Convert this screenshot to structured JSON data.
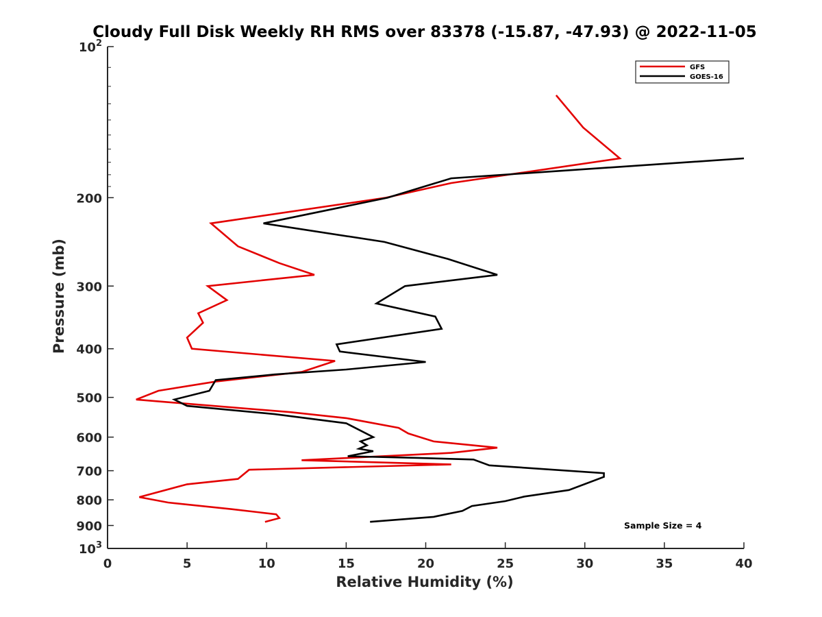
{
  "chart_data": {
    "type": "line",
    "title": "Cloudy Full Disk Weekly RH RMS over 83378 (-15.87, -47.93) @ 2022-11-05",
    "xlabel": "Relative Humidity (%)",
    "ylabel": "Pressure (mb)",
    "xlim": [
      0,
      40
    ],
    "ylim": [
      100,
      1000
    ],
    "y_scale": "log",
    "y_reversed": true,
    "grid": false,
    "legend_position": "top-right",
    "x_ticks": [
      {
        "value": 0,
        "label": "0"
      },
      {
        "value": 5,
        "label": "5"
      },
      {
        "value": 10,
        "label": "10"
      },
      {
        "value": 15,
        "label": "15"
      },
      {
        "value": 20,
        "label": "20"
      },
      {
        "value": 25,
        "label": "25"
      },
      {
        "value": 30,
        "label": "30"
      },
      {
        "value": 35,
        "label": "35"
      },
      {
        "value": 40,
        "label": "40"
      }
    ],
    "y_ticks": [
      {
        "value": 100,
        "label": "10",
        "exp": "2"
      },
      {
        "value": 200,
        "label": "200",
        "exp": ""
      },
      {
        "value": 300,
        "label": "300",
        "exp": ""
      },
      {
        "value": 400,
        "label": "400",
        "exp": ""
      },
      {
        "value": 500,
        "label": "500",
        "exp": ""
      },
      {
        "value": 600,
        "label": "600",
        "exp": ""
      },
      {
        "value": 700,
        "label": "700",
        "exp": ""
      },
      {
        "value": 800,
        "label": "800",
        "exp": ""
      },
      {
        "value": 900,
        "label": "900",
        "exp": ""
      },
      {
        "value": 1000,
        "label": "10",
        "exp": "3"
      }
    ],
    "series": [
      {
        "name": "GFS",
        "color": "#e30000",
        "points": [
          [
            28.2,
            125
          ],
          [
            29.9,
            145
          ],
          [
            32.2,
            167
          ],
          [
            21.6,
            187
          ],
          [
            17.5,
            200
          ],
          [
            6.5,
            225
          ],
          [
            8.2,
            250
          ],
          [
            10.8,
            270
          ],
          [
            13.0,
            285
          ],
          [
            6.3,
            300
          ],
          [
            7.5,
            320
          ],
          [
            5.7,
            340
          ],
          [
            6.0,
            355
          ],
          [
            5.0,
            380
          ],
          [
            5.3,
            400
          ],
          [
            14.3,
            423
          ],
          [
            12.2,
            445
          ],
          [
            6.8,
            465
          ],
          [
            3.2,
            485
          ],
          [
            1.8,
            505
          ],
          [
            11.5,
            535
          ],
          [
            15.0,
            550
          ],
          [
            18.3,
            575
          ],
          [
            18.9,
            590
          ],
          [
            20.5,
            612
          ],
          [
            24.5,
            630
          ],
          [
            21.6,
            645
          ],
          [
            12.2,
            667
          ],
          [
            21.6,
            680
          ],
          [
            8.9,
            697
          ],
          [
            8.2,
            727
          ],
          [
            5.0,
            745
          ],
          [
            2.0,
            790
          ],
          [
            3.8,
            810
          ],
          [
            7.8,
            835
          ],
          [
            10.6,
            855
          ],
          [
            10.8,
            870
          ],
          [
            9.9,
            885
          ]
        ]
      },
      {
        "name": "GOES-16",
        "color": "#000000",
        "points": [
          [
            40.0,
            167
          ],
          [
            21.6,
            183
          ],
          [
            17.6,
            200
          ],
          [
            9.8,
            225
          ],
          [
            17.4,
            245
          ],
          [
            21.4,
            265
          ],
          [
            24.5,
            285
          ],
          [
            18.7,
            300
          ],
          [
            16.9,
            325
          ],
          [
            20.6,
            345
          ],
          [
            21.0,
            365
          ],
          [
            14.4,
            392
          ],
          [
            14.6,
            405
          ],
          [
            20.0,
            425
          ],
          [
            15.0,
            440
          ],
          [
            10.5,
            450
          ],
          [
            6.8,
            462
          ],
          [
            6.4,
            485
          ],
          [
            4.2,
            505
          ],
          [
            5.0,
            520
          ],
          [
            10.5,
            540
          ],
          [
            15.0,
            563
          ],
          [
            16.7,
            600
          ],
          [
            15.9,
            612
          ],
          [
            16.3,
            623
          ],
          [
            15.8,
            633
          ],
          [
            16.7,
            640
          ],
          [
            15.1,
            655
          ],
          [
            19.5,
            660
          ],
          [
            23.0,
            665
          ],
          [
            24.0,
            683
          ],
          [
            31.2,
            708
          ],
          [
            31.2,
            720
          ],
          [
            29.0,
            765
          ],
          [
            26.2,
            788
          ],
          [
            25.0,
            805
          ],
          [
            22.9,
            823
          ],
          [
            22.3,
            842
          ],
          [
            20.5,
            865
          ],
          [
            16.5,
            885
          ]
        ]
      }
    ],
    "annotations": [
      "Sample Size = 4"
    ]
  }
}
